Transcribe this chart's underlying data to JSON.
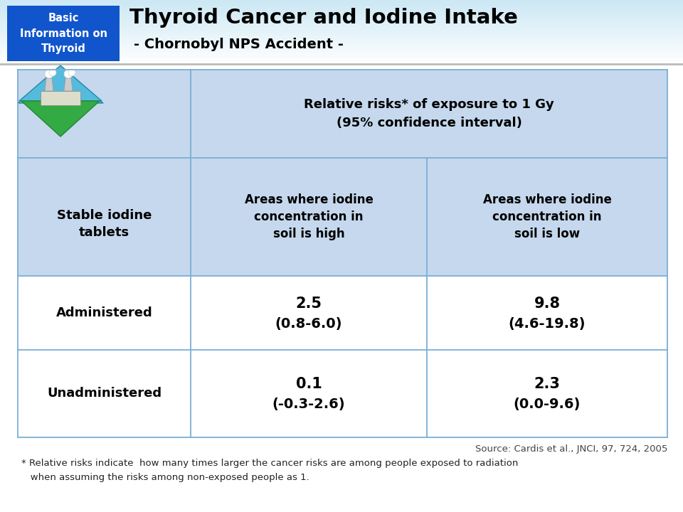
{
  "title_main": "Thyroid Cancer and Iodine Intake",
  "title_sub": "- Chornobyl NPS Accident -",
  "header_box_text": "Basic\nInformation on\nThyroid",
  "header_bg_top": "#d6eef8",
  "header_bg_bottom": "#e8f4fb",
  "header_box_bg": "#1155cc",
  "header_box_text_color": "#ffffff",
  "table_header_bg": "#c5d8ed",
  "table_line_color": "#7bafd4",
  "col0_header": "Stable iodine\ntablets",
  "col1_header": "Areas where iodine\nconcentration in\nsoil is high",
  "col2_header": "Areas where iodine\nconcentration in\nsoil is low",
  "merged_header": "Relative risks* of exposure to 1 Gy\n(95% confidence interval)",
  "rows": [
    {
      "label": "Administered",
      "col1_main": "2.5",
      "col1_sub": "(0.8-6.0)",
      "col2_main": "9.8",
      "col2_sub": "(4.6-19.8)"
    },
    {
      "label": "Unadministered",
      "col1_main": "0.1",
      "col1_sub": "(-0.3-2.6)",
      "col2_main": "2.3",
      "col2_sub": "(0.0-9.6)"
    }
  ],
  "source_text": "Source: Cardis et al., JNCI, 97, 724, 2005",
  "footnote_line1": "* Relative risks indicate  how many times larger the cancer risks are among people exposed to radiation",
  "footnote_line2": "   when assuming the risks among non-exposed people as 1."
}
